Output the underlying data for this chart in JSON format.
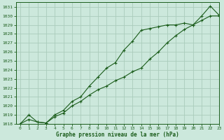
{
  "xlabel": "Graphe pression niveau de la mer (hPa)",
  "bg_color": "#cce8dc",
  "grid_color": "#aaccbb",
  "line_color": "#1a5c1a",
  "ylim": [
    1018,
    1031.5
  ],
  "xlim": [
    -0.5,
    23
  ],
  "yticks": [
    1018,
    1019,
    1020,
    1021,
    1022,
    1023,
    1024,
    1025,
    1026,
    1027,
    1028,
    1029,
    1030,
    1031
  ],
  "xticks": [
    0,
    1,
    2,
    3,
    4,
    5,
    6,
    7,
    8,
    9,
    10,
    11,
    12,
    13,
    14,
    15,
    16,
    17,
    18,
    19,
    20,
    21,
    22,
    23
  ],
  "series1_x": [
    0,
    1,
    2,
    3,
    4,
    5,
    6,
    7,
    8,
    9,
    10,
    11,
    12,
    13,
    14,
    15,
    16,
    17,
    18,
    19,
    20,
    21,
    22,
    23
  ],
  "series1_y": [
    1018.0,
    1018.5,
    1018.2,
    1018.1,
    1018.8,
    1019.2,
    1020.0,
    1020.5,
    1021.2,
    1021.8,
    1022.2,
    1022.8,
    1023.2,
    1023.8,
    1024.2,
    1025.2,
    1026.0,
    1027.0,
    1027.8,
    1028.5,
    1029.0,
    1029.5,
    1030.0,
    1030.0
  ],
  "series2_x": [
    0,
    1,
    2,
    3,
    4,
    5,
    6,
    7,
    8,
    9,
    10,
    11,
    12,
    13,
    14,
    15,
    16,
    17,
    18,
    19,
    20,
    21,
    22,
    23
  ],
  "series2_y": [
    1018.0,
    1019.0,
    1018.2,
    1018.1,
    1019.0,
    1019.5,
    1020.5,
    1021.0,
    1022.2,
    1023.2,
    1024.2,
    1024.8,
    1026.2,
    1027.2,
    1028.4,
    1028.6,
    1028.8,
    1029.0,
    1029.0,
    1029.2,
    1029.0,
    1030.0,
    1031.1,
    1030.1
  ]
}
